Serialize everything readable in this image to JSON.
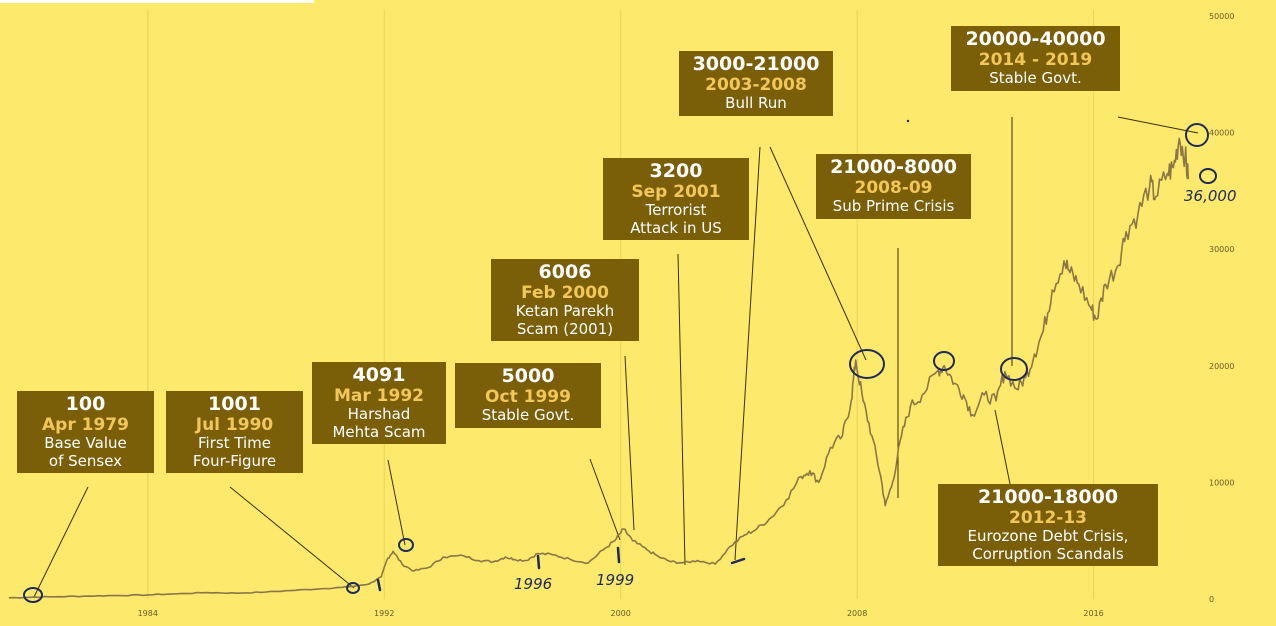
{
  "colors": {
    "background": "#fde96b",
    "annotation_box": "#7a5f08",
    "annotation_date": "#f2c75a",
    "line": "#8a7648",
    "ink": "#1e2a5a"
  },
  "chart_data": {
    "type": "line",
    "title": "",
    "xlabel": "",
    "ylabel": "",
    "xlim": [
      1979.0,
      2019.6
    ],
    "ylim": [
      0,
      50000
    ],
    "x_ticks": [
      "1984",
      "1992",
      "2000",
      "2008",
      "2016"
    ],
    "y_ticks": [
      "0",
      "10000",
      "20000",
      "30000",
      "40000",
      "50000"
    ],
    "grid": true,
    "series": [
      {
        "x": [
          1979.3,
          1980,
          1981,
          1982,
          1983,
          1984,
          1985,
          1986,
          1987,
          1988,
          1989,
          1990.0,
          1990.6,
          1991.0,
          1991.5,
          1991.9,
          1992.1,
          1992.3,
          1992.6,
          1993.0,
          1993.5,
          1994.0,
          1994.7,
          1995.2,
          1995.7,
          1996.1,
          1996.4,
          1996.8,
          1997.2,
          1997.7,
          1998.3,
          1998.9,
          1999.4,
          1999.8,
          2000.1,
          2000.4,
          2000.9,
          2001.3,
          2001.7,
          2002.1,
          2002.6,
          2003.2,
          2003.7,
          2004.2,
          2004.6,
          2005.1,
          2005.6,
          2006.1,
          2006.4,
          2006.7,
          2007.1,
          2007.5,
          2007.8,
          2007.95,
          2008.2,
          2008.5,
          2008.8,
          2008.95,
          2009.2,
          2009.5,
          2009.8,
          2010.2,
          2010.7,
          2010.95,
          2011.3,
          2011.6,
          2011.9,
          2012.3,
          2012.7,
          2013.0,
          2013.4,
          2013.7,
          2014.0,
          2014.3,
          2014.6,
          2015.0,
          2015.2,
          2015.5,
          2015.9,
          2016.1,
          2016.4,
          2016.8,
          2017.1,
          2017.5,
          2017.9,
          2018.1,
          2018.5,
          2018.7,
          2018.9,
          2019.1,
          2019.2
        ],
        "y": [
          100,
          150,
          200,
          250,
          300,
          350,
          450,
          550,
          500,
          600,
          750,
          900,
          1001,
          1100,
          1300,
          1900,
          3400,
          4091,
          3000,
          2400,
          2700,
          3600,
          3700,
          3300,
          3200,
          3600,
          3400,
          3300,
          3900,
          3800,
          3400,
          3100,
          4200,
          5000,
          6006,
          5000,
          4200,
          3600,
          3200,
          3100,
          3300,
          3000,
          4500,
          5500,
          6000,
          7000,
          8500,
          10500,
          11000,
          10000,
          13000,
          14000,
          17000,
          20500,
          17000,
          14000,
          10500,
          8000,
          10000,
          14000,
          16500,
          17500,
          19500,
          20000,
          18500,
          17500,
          15800,
          17500,
          17000,
          19500,
          18000,
          19000,
          21000,
          23000,
          26500,
          29000,
          28000,
          27000,
          25000,
          24000,
          27000,
          28500,
          31500,
          33000,
          35500,
          34500,
          36500,
          37000,
          39500,
          38000,
          36000
        ]
      }
    ],
    "annotations": [
      {
        "value": "100",
        "date": "Apr 1979",
        "text": [
          "Base Value",
          "of Sensex"
        ]
      },
      {
        "value": "1001",
        "date": "Jul 1990",
        "text": [
          "First Time",
          "Four-Figure"
        ]
      },
      {
        "value": "4091",
        "date": "Mar 1992",
        "text": [
          "Harshad",
          "Mehta Scam"
        ]
      },
      {
        "value": "5000",
        "date": "Oct 1999",
        "text": [
          "Stable Govt."
        ]
      },
      {
        "value": "6006",
        "date": "Feb 2000",
        "text": [
          "Ketan Parekh",
          "Scam (2001)"
        ]
      },
      {
        "value": "3200",
        "date": "Sep 2001",
        "text": [
          "Terrorist",
          "Attack in US"
        ]
      },
      {
        "value": "3000-21000",
        "date": "2003-2008",
        "text": [
          "Bull Run"
        ]
      },
      {
        "value": "21000-8000",
        "date": "2008-09",
        "text": [
          "Sub Prime Crisis"
        ]
      },
      {
        "value": "20000-40000",
        "date": "2014 - 2019",
        "text": [
          "Stable Govt."
        ]
      },
      {
        "value": "21000-18000",
        "date": "2012-13",
        "text": [
          "Eurozone Debt Crisis,",
          "Corruption Scandals"
        ]
      }
    ],
    "handwritten": [
      "1996",
      "1999",
      "36,000"
    ]
  }
}
